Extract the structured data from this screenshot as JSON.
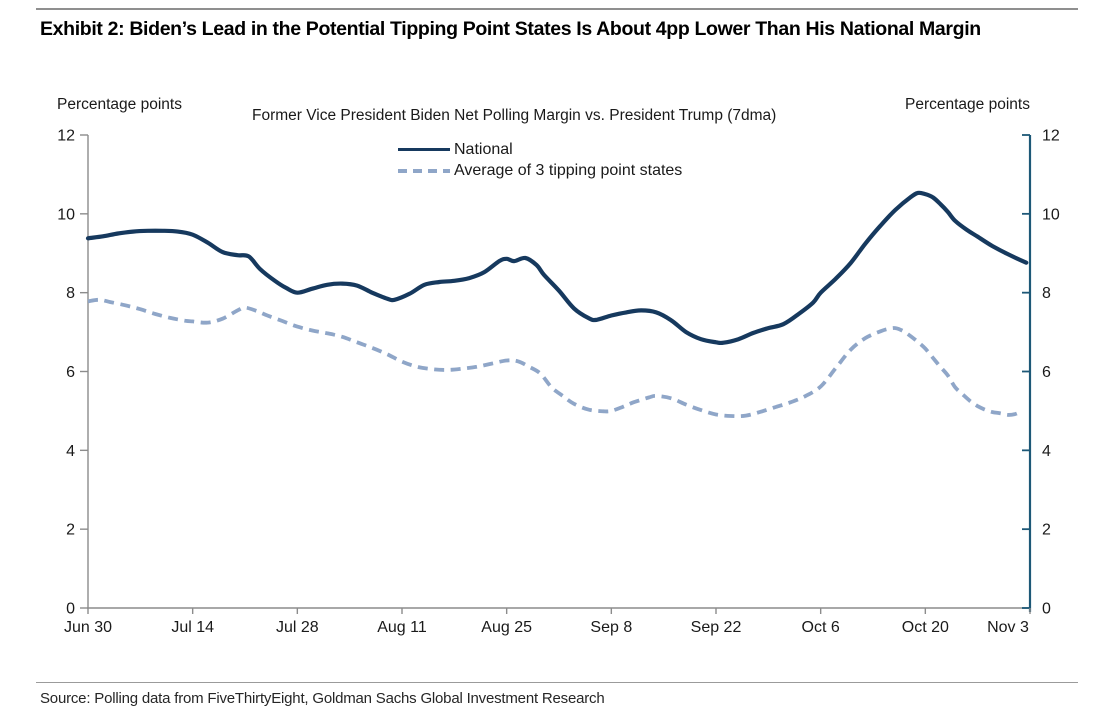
{
  "page": {
    "title": "Exhibit 2: Biden’s Lead in the Potential Tipping Point States Is About 4pp Lower Than His National Margin",
    "source": "Source: Polling data from FiveThirtyEight, Goldman Sachs Global Investment Research"
  },
  "chart_data": {
    "type": "line",
    "title": "Former Vice President Biden Net Polling Margin vs. President Trump (7dma)",
    "ylabel_left": "Percentage points",
    "ylabel_right": "Percentage points",
    "ylim": [
      0,
      12
    ],
    "y_ticks": [
      0,
      2,
      4,
      6,
      8,
      10,
      12
    ],
    "x_range_days": 126,
    "x_ticks": [
      {
        "d": 0,
        "label": "Jun 30"
      },
      {
        "d": 14,
        "label": "Jul 14"
      },
      {
        "d": 28,
        "label": "Jul 28"
      },
      {
        "d": 42,
        "label": "Aug 11"
      },
      {
        "d": 56,
        "label": "Aug 25"
      },
      {
        "d": 70,
        "label": "Sep 8"
      },
      {
        "d": 84,
        "label": "Sep 22"
      },
      {
        "d": 98,
        "label": "Oct 6"
      },
      {
        "d": 112,
        "label": "Oct 20"
      },
      {
        "d": 126,
        "label": "Nov 3"
      }
    ],
    "grid": false,
    "legend_position": "top-center",
    "axis_colors": {
      "left": "#8c8c8c",
      "bottom": "#8c8c8c",
      "right": "#1d5877"
    },
    "series": [
      {
        "name": "National",
        "style": "solid",
        "color": "#16395e",
        "width": 4.2,
        "points": [
          [
            0,
            9.38
          ],
          [
            2,
            9.43
          ],
          [
            4,
            9.5
          ],
          [
            6,
            9.55
          ],
          [
            8,
            9.57
          ],
          [
            10,
            9.57
          ],
          [
            12,
            9.55
          ],
          [
            14,
            9.47
          ],
          [
            16,
            9.27
          ],
          [
            18,
            9.03
          ],
          [
            20,
            8.95
          ],
          [
            21.5,
            8.92
          ],
          [
            23,
            8.6
          ],
          [
            25,
            8.3
          ],
          [
            26.5,
            8.12
          ],
          [
            28,
            8.0
          ],
          [
            30,
            8.1
          ],
          [
            32,
            8.2
          ],
          [
            34,
            8.23
          ],
          [
            36,
            8.18
          ],
          [
            38,
            8.0
          ],
          [
            40,
            7.85
          ],
          [
            41,
            7.82
          ],
          [
            43,
            7.97
          ],
          [
            45,
            8.2
          ],
          [
            47,
            8.27
          ],
          [
            49,
            8.3
          ],
          [
            51,
            8.37
          ],
          [
            53,
            8.52
          ],
          [
            55,
            8.8
          ],
          [
            56,
            8.86
          ],
          [
            57,
            8.8
          ],
          [
            58.5,
            8.88
          ],
          [
            60,
            8.7
          ],
          [
            61,
            8.45
          ],
          [
            63,
            8.05
          ],
          [
            65,
            7.6
          ],
          [
            67,
            7.35
          ],
          [
            68,
            7.31
          ],
          [
            70,
            7.42
          ],
          [
            72,
            7.5
          ],
          [
            74,
            7.55
          ],
          [
            76,
            7.5
          ],
          [
            78,
            7.3
          ],
          [
            80,
            7.0
          ],
          [
            82,
            6.82
          ],
          [
            84,
            6.74
          ],
          [
            85,
            6.73
          ],
          [
            87,
            6.82
          ],
          [
            89,
            6.98
          ],
          [
            91,
            7.1
          ],
          [
            93,
            7.2
          ],
          [
            95,
            7.45
          ],
          [
            97,
            7.75
          ],
          [
            98,
            8.0
          ],
          [
            100,
            8.35
          ],
          [
            102,
            8.75
          ],
          [
            104,
            9.25
          ],
          [
            106,
            9.7
          ],
          [
            108,
            10.1
          ],
          [
            110,
            10.42
          ],
          [
            111,
            10.53
          ],
          [
            112,
            10.5
          ],
          [
            113,
            10.42
          ],
          [
            114,
            10.25
          ],
          [
            115,
            10.05
          ],
          [
            116,
            9.82
          ],
          [
            117.5,
            9.6
          ],
          [
            119,
            9.42
          ],
          [
            121,
            9.18
          ],
          [
            123,
            8.98
          ],
          [
            125.5,
            8.76
          ]
        ]
      },
      {
        "name": "Average of 3 tipping point states",
        "style": "dashed",
        "color": "#8fa6c8",
        "width": 3.8,
        "points": [
          [
            0,
            7.78
          ],
          [
            1.5,
            7.82
          ],
          [
            3,
            7.76
          ],
          [
            5,
            7.68
          ],
          [
            7,
            7.58
          ],
          [
            9,
            7.46
          ],
          [
            11,
            7.36
          ],
          [
            13,
            7.29
          ],
          [
            14,
            7.27
          ],
          [
            16,
            7.24
          ],
          [
            18,
            7.34
          ],
          [
            20,
            7.55
          ],
          [
            21,
            7.62
          ],
          [
            22.5,
            7.54
          ],
          [
            24,
            7.42
          ],
          [
            26,
            7.28
          ],
          [
            28,
            7.14
          ],
          [
            30,
            7.04
          ],
          [
            32,
            6.97
          ],
          [
            34,
            6.88
          ],
          [
            36,
            6.74
          ],
          [
            38,
            6.6
          ],
          [
            40,
            6.44
          ],
          [
            42,
            6.25
          ],
          [
            44,
            6.12
          ],
          [
            46,
            6.06
          ],
          [
            48,
            6.04
          ],
          [
            50,
            6.07
          ],
          [
            52,
            6.12
          ],
          [
            54,
            6.2
          ],
          [
            56,
            6.28
          ],
          [
            57.5,
            6.26
          ],
          [
            59,
            6.12
          ],
          [
            60.5,
            5.95
          ],
          [
            62,
            5.6
          ],
          [
            63.5,
            5.38
          ],
          [
            65,
            5.18
          ],
          [
            67,
            5.03
          ],
          [
            69,
            4.99
          ],
          [
            70,
            5.0
          ],
          [
            71.5,
            5.1
          ],
          [
            73,
            5.22
          ],
          [
            75,
            5.34
          ],
          [
            76,
            5.38
          ],
          [
            78,
            5.32
          ],
          [
            80,
            5.16
          ],
          [
            82,
            5.02
          ],
          [
            84,
            4.91
          ],
          [
            86,
            4.87
          ],
          [
            88,
            4.88
          ],
          [
            90,
            4.98
          ],
          [
            92,
            5.1
          ],
          [
            94,
            5.22
          ],
          [
            96,
            5.38
          ],
          [
            98,
            5.62
          ],
          [
            100,
            6.08
          ],
          [
            102,
            6.55
          ],
          [
            104,
            6.85
          ],
          [
            106,
            7.02
          ],
          [
            107,
            7.08
          ],
          [
            108,
            7.1
          ],
          [
            109,
            7.03
          ],
          [
            110,
            6.9
          ],
          [
            111,
            6.75
          ],
          [
            112,
            6.58
          ],
          [
            113,
            6.35
          ],
          [
            114,
            6.12
          ],
          [
            115,
            5.9
          ],
          [
            116,
            5.6
          ],
          [
            117,
            5.42
          ],
          [
            118,
            5.25
          ],
          [
            119,
            5.12
          ],
          [
            120,
            5.03
          ],
          [
            121,
            4.97
          ],
          [
            122,
            4.94
          ],
          [
            123,
            4.9
          ],
          [
            124,
            4.92
          ],
          [
            125,
            5.0
          ]
        ]
      }
    ]
  }
}
